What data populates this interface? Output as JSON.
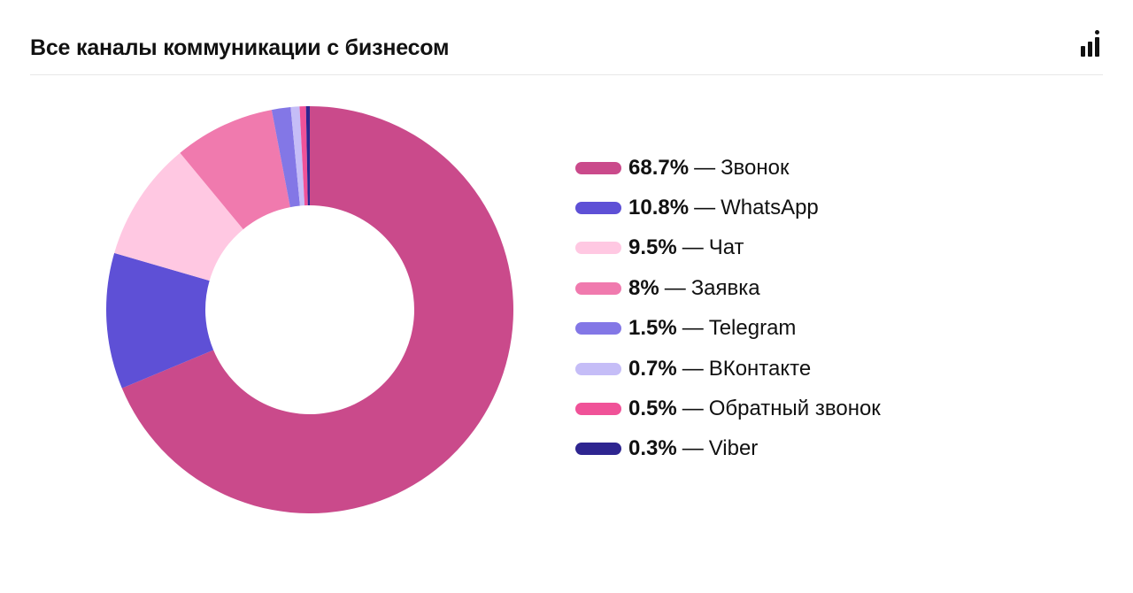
{
  "header": {
    "title": "Все каналы коммуникации с бизнесом",
    "chart_toggle_icon": "bar-chart-icon"
  },
  "legend_separator": "—",
  "chart_data": {
    "type": "pie",
    "donut": true,
    "title": "Все каналы коммуникации с бизнесом",
    "legend_placement": "right",
    "slices": [
      {
        "label": "Звонок",
        "value": 68.7,
        "display": "68.7%",
        "color": "#CA4A8B"
      },
      {
        "label": "WhatsApp",
        "value": 10.8,
        "display": "10.8%",
        "color": "#5E50D6"
      },
      {
        "label": "Чат",
        "value": 9.5,
        "display": "9.5%",
        "color": "#FFC8E2"
      },
      {
        "label": "Заявка",
        "value": 8,
        "display": "8%",
        "color": "#F07AAE"
      },
      {
        "label": "Telegram",
        "value": 1.5,
        "display": "1.5%",
        "color": "#8377E6"
      },
      {
        "label": "ВКонтакте",
        "value": 0.7,
        "display": "0.7%",
        "color": "#C5BDF7"
      },
      {
        "label": "Обратный звонок",
        "value": 0.5,
        "display": "0.5%",
        "color": "#F05298"
      },
      {
        "label": "Viber",
        "value": 0.3,
        "display": "0.3%",
        "color": "#2E2590"
      }
    ]
  }
}
